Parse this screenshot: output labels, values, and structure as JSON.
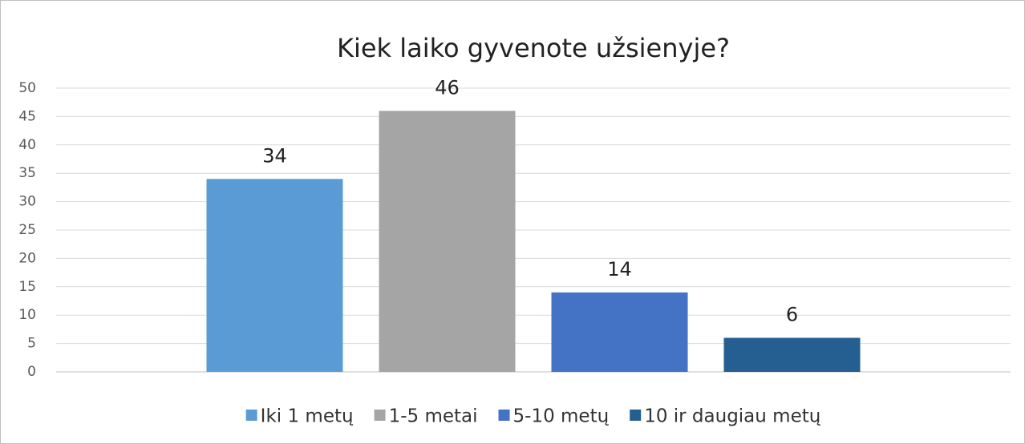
{
  "chart_data": {
    "type": "bar",
    "title": "Kiek laiko gyvenote užsienyje?",
    "categories": [
      null
    ],
    "series": [
      {
        "name": "Iki 1 metų",
        "color": "#5b9bd5",
        "values": [
          34
        ]
      },
      {
        "name": "1-5 metai",
        "color": "#a5a5a5",
        "values": [
          46
        ]
      },
      {
        "name": "5-10 metų",
        "color": "#4472c4",
        "values": [
          14
        ]
      },
      {
        "name": "10 ir daugiau metų",
        "color": "#255e91",
        "values": [
          6
        ]
      }
    ],
    "ylim": [
      0,
      50
    ],
    "yticks": [
      0,
      5,
      10,
      15,
      20,
      25,
      30,
      35,
      40,
      45,
      50
    ],
    "grid": true,
    "legend": "bottom"
  }
}
